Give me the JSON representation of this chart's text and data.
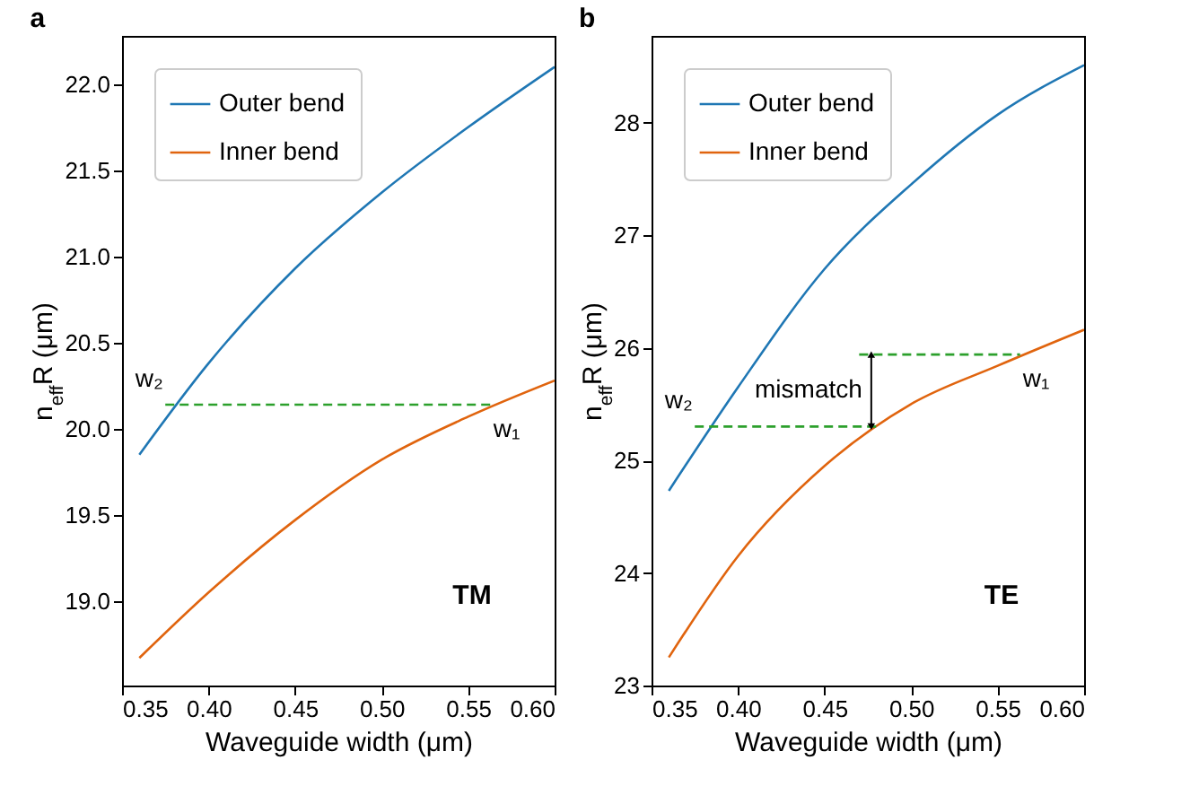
{
  "chart_data": [
    {
      "type": "line",
      "title": "a",
      "xlabel": "Waveguide width (μm)",
      "ylabel": "n$_{eff}$R (μm)",
      "xlim": [
        0.35,
        0.6
      ],
      "ylim": [
        18.51,
        22.28
      ],
      "xticks": [
        0.35,
        {
          "value": 0.4,
          "label": "0.40"
        },
        0.45,
        {
          "value": 0.5,
          "label": "0.50"
        },
        0.55,
        {
          "value": 0.6,
          "label": "0.60"
        }
      ],
      "yticks": [
        {
          "value": 19,
          "label": "19.0"
        },
        19.5,
        {
          "value": 20,
          "label": "20.0"
        },
        20.5,
        {
          "value": 21,
          "label": "21.0"
        },
        21.5,
        {
          "value": 22,
          "label": "22.0"
        }
      ],
      "x": [
        0.36,
        0.4,
        0.45,
        0.5,
        0.55,
        0.6
      ],
      "legend": "top left",
      "grid": false,
      "series": [
        {
          "name": "Outer bend",
          "color": "#1f77b4",
          "values": [
            19.85,
            20.38,
            20.93,
            21.37,
            21.75,
            22.1
          ]
        },
        {
          "name": "Inner bend",
          "color": "#e0640e",
          "values": [
            18.67,
            19.05,
            19.47,
            19.82,
            20.07,
            20.28
          ]
        },
        {
          "type": "line",
          "color": "#2ca02c",
          "line_style": "dashed",
          "x": [
            0.375,
            0.563
          ],
          "values": [
            20.14,
            20.14
          ]
        }
      ],
      "annotations": [
        "w₂",
        "w₁",
        "TM"
      ]
    },
    {
      "type": "line",
      "title": "b",
      "xlabel": "Waveguide width (μm)",
      "ylabel": "n$_{eff}$R (μm)",
      "xlim": [
        0.35,
        0.6
      ],
      "ylim": [
        23,
        28.77
      ],
      "xticks": [
        0.35,
        {
          "value": 0.4,
          "label": "0.40"
        },
        0.45,
        {
          "value": 0.5,
          "label": "0.50"
        },
        0.55,
        {
          "value": 0.6,
          "label": "0.60"
        }
      ],
      "yticks": [
        23,
        24,
        25,
        26,
        27,
        28
      ],
      "x": [
        0.36,
        0.4,
        0.45,
        0.5,
        0.55,
        0.6
      ],
      "legend": "top left",
      "grid": false,
      "series": [
        {
          "name": "Outer bend",
          "color": "#1f77b4",
          "values": [
            24.73,
            25.65,
            26.7,
            27.45,
            28.07,
            28.51
          ]
        },
        {
          "name": "Inner bend",
          "color": "#e0640e",
          "values": [
            23.25,
            24.15,
            24.95,
            25.5,
            25.84,
            26.16
          ]
        },
        {
          "type": "line",
          "color": "#2ca02c",
          "line_style": "dashed",
          "x": [
            0.47,
            0.563
          ],
          "values": [
            25.94,
            25.94
          ]
        },
        {
          "type": "line",
          "color": "#2ca02c",
          "line_style": "dashed",
          "x": [
            0.375,
            0.48
          ],
          "values": [
            25.3,
            25.3
          ]
        }
      ],
      "annotations": [
        "w₂",
        "w₁",
        "mismatch",
        "TE"
      ]
    }
  ]
}
